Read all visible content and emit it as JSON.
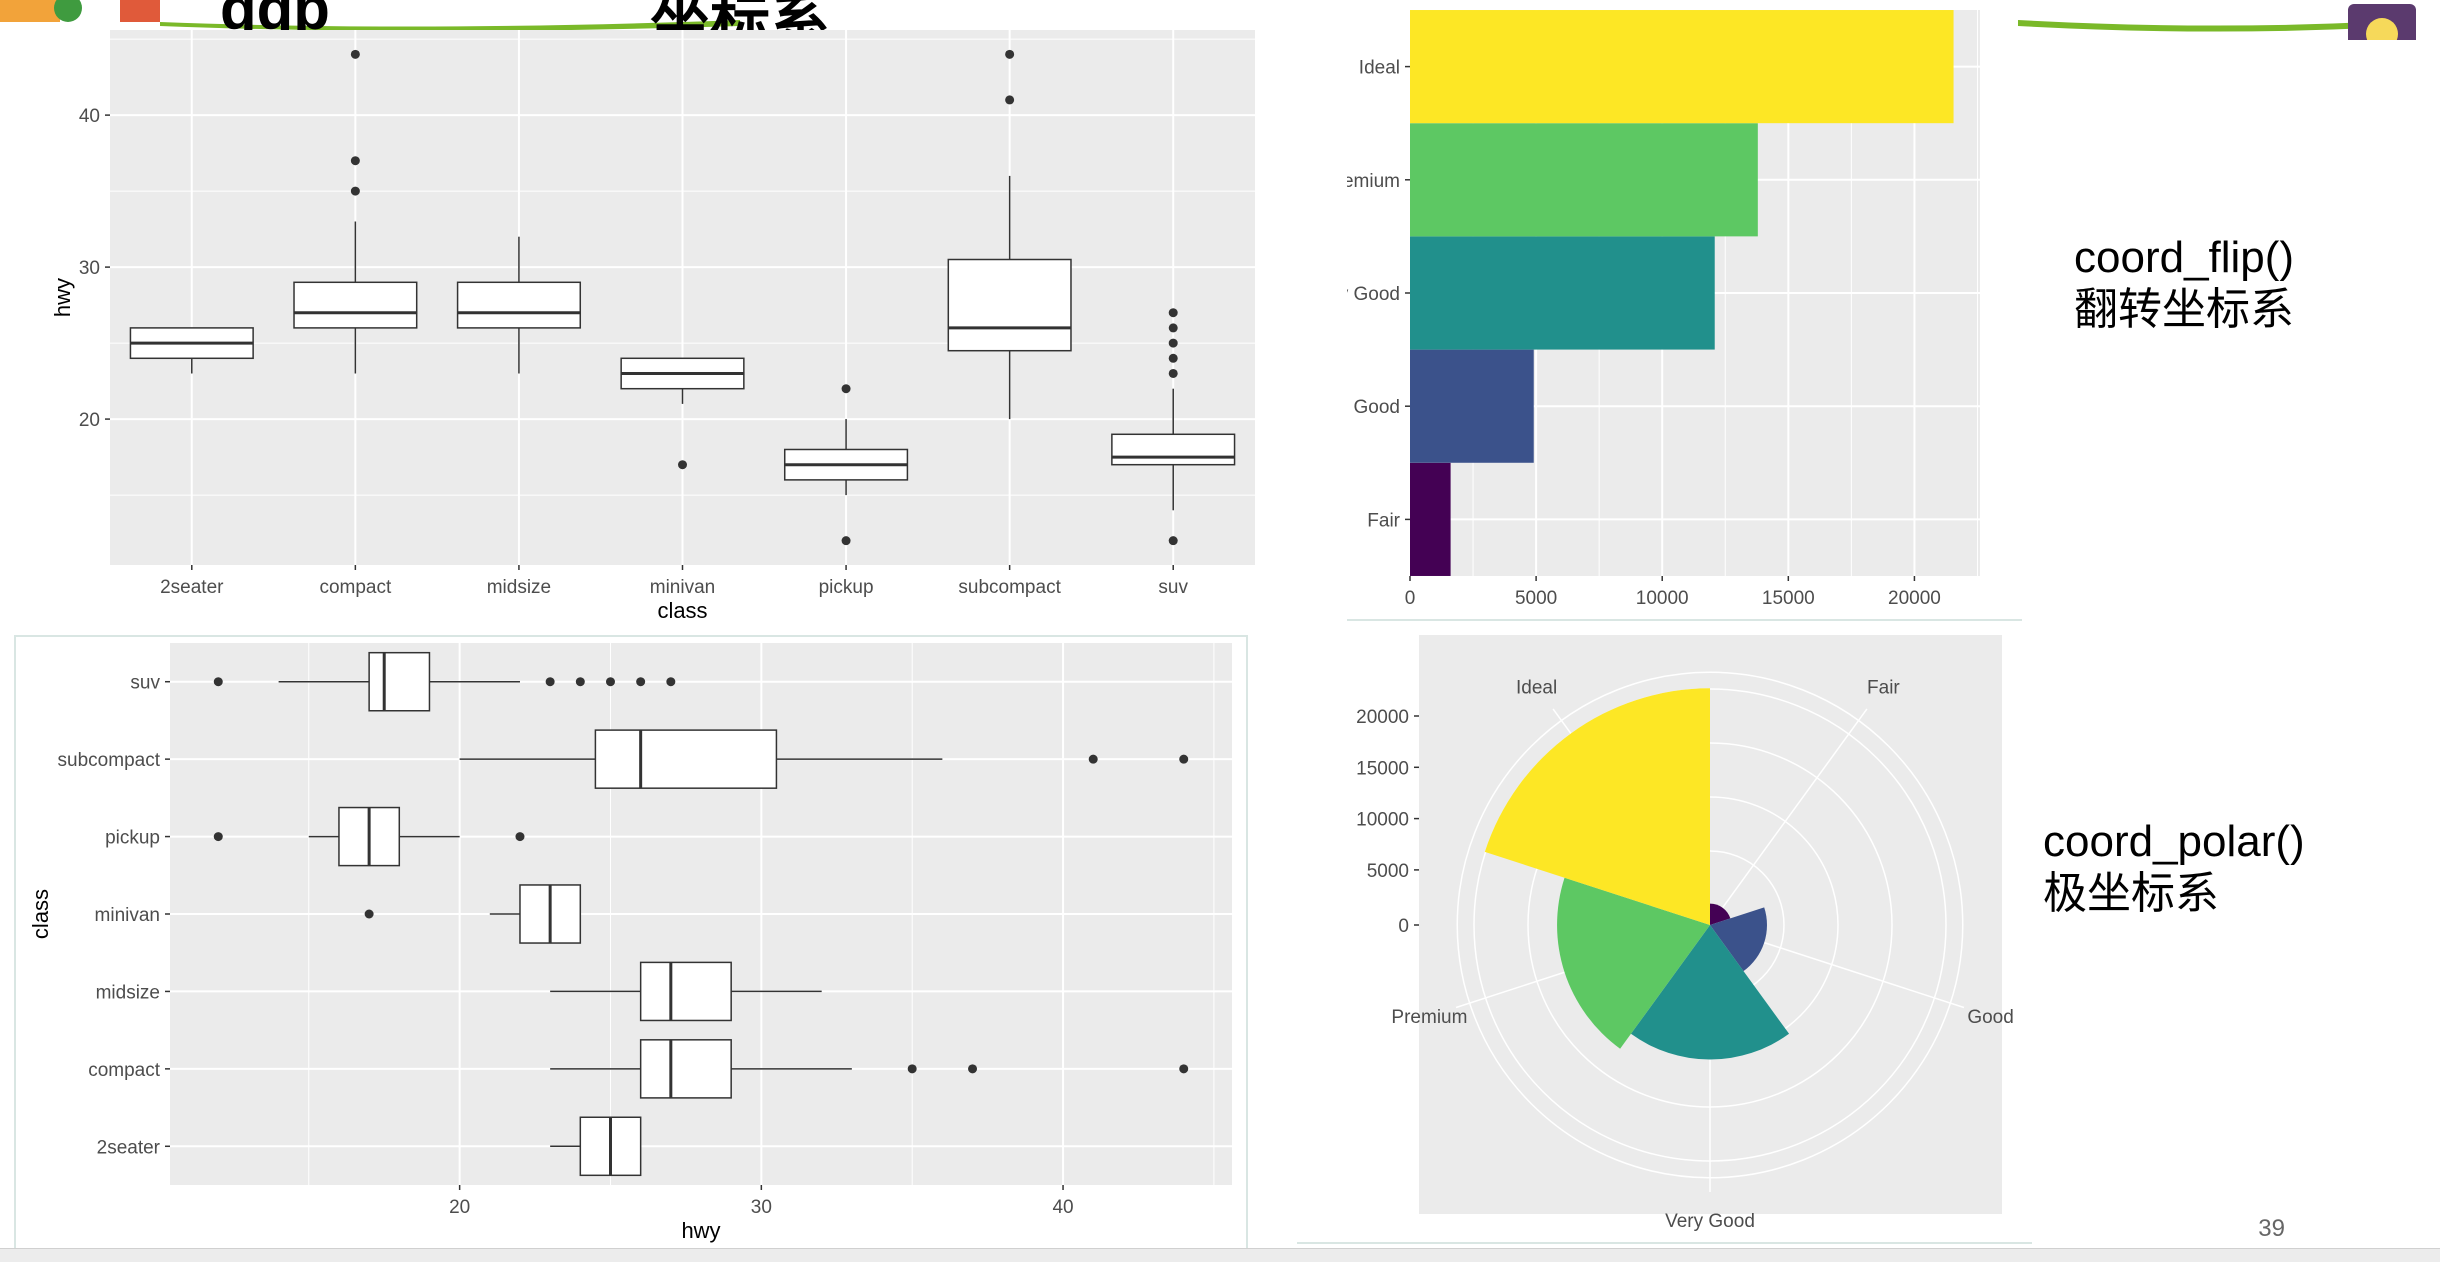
{
  "slide": {
    "title_fragment_left": "ggp",
    "title_fragment_right": "坐标系",
    "page_number": "39",
    "colors": {
      "accent_green": "#7ab929",
      "logo_purple": "#5b3a6e"
    }
  },
  "annotations": {
    "flip": {
      "line1": "coord_flip()",
      "line2": "翻转坐标系"
    },
    "polar": {
      "line1": "coord_polar()",
      "line2": "极坐标系"
    }
  },
  "chart_data": [
    {
      "id": "boxplot-vertical",
      "type": "boxplot",
      "orientation": "vertical",
      "xlabel": "class",
      "ylabel": "hwy",
      "ylim": [
        10.4,
        45.6
      ],
      "ticks": [
        20,
        30,
        40
      ],
      "categories": [
        "2seater",
        "compact",
        "midsize",
        "minivan",
        "pickup",
        "subcompact",
        "suv"
      ],
      "boxes": [
        {
          "q1": 24,
          "median": 25,
          "q3": 26,
          "lo": 23,
          "hi": 26,
          "outliers": []
        },
        {
          "q1": 26,
          "median": 27,
          "q3": 29,
          "lo": 23,
          "hi": 33,
          "outliers": [
            35,
            37,
            44
          ]
        },
        {
          "q1": 26,
          "median": 27,
          "q3": 29,
          "lo": 23,
          "hi": 32,
          "outliers": []
        },
        {
          "q1": 22,
          "median": 23,
          "q3": 24,
          "lo": 21,
          "hi": 24,
          "outliers": [
            17
          ]
        },
        {
          "q1": 16,
          "median": 17,
          "q3": 18,
          "lo": 15,
          "hi": 20,
          "outliers": [
            12,
            22
          ]
        },
        {
          "q1": 24.5,
          "median": 26,
          "q3": 30.5,
          "lo": 20,
          "hi": 36,
          "outliers": [
            41,
            44
          ]
        },
        {
          "q1": 17,
          "median": 17.5,
          "q3": 19,
          "lo": 14,
          "hi": 22,
          "outliers": [
            12,
            23,
            24,
            25,
            26,
            27
          ]
        }
      ]
    },
    {
      "id": "boxplot-flipped",
      "type": "boxplot",
      "orientation": "horizontal",
      "xlabel": "hwy",
      "ylabel": "class",
      "xlim": [
        10.4,
        45.6
      ],
      "ticks": [
        20,
        30,
        40
      ],
      "categories": [
        "2seater",
        "compact",
        "midsize",
        "minivan",
        "pickup",
        "subcompact",
        "suv"
      ],
      "boxes": [
        {
          "q1": 24,
          "median": 25,
          "q3": 26,
          "lo": 23,
          "hi": 26,
          "outliers": []
        },
        {
          "q1": 26,
          "median": 27,
          "q3": 29,
          "lo": 23,
          "hi": 33,
          "outliers": [
            35,
            37,
            44
          ]
        },
        {
          "q1": 26,
          "median": 27,
          "q3": 29,
          "lo": 23,
          "hi": 32,
          "outliers": []
        },
        {
          "q1": 22,
          "median": 23,
          "q3": 24,
          "lo": 21,
          "hi": 24,
          "outliers": [
            17
          ]
        },
        {
          "q1": 16,
          "median": 17,
          "q3": 18,
          "lo": 15,
          "hi": 20,
          "outliers": [
            12,
            22
          ]
        },
        {
          "q1": 24.5,
          "median": 26,
          "q3": 30.5,
          "lo": 20,
          "hi": 36,
          "outliers": [
            41,
            44
          ]
        },
        {
          "q1": 17,
          "median": 17.5,
          "q3": 19,
          "lo": 14,
          "hi": 22,
          "outliers": [
            12,
            23,
            24,
            25,
            26,
            27
          ]
        }
      ]
    },
    {
      "id": "bar-flipped",
      "type": "bar",
      "orientation": "horizontal",
      "categories": [
        "Fair",
        "Good",
        "Very Good",
        "Premium",
        "Ideal"
      ],
      "tick_labels": [
        "Fair",
        "Good",
        "y Good",
        "emium",
        "Ideal"
      ],
      "values": [
        1610,
        4906,
        12082,
        13791,
        21551
      ],
      "colors": [
        "#440154",
        "#3b528b",
        "#21908c",
        "#5dc863",
        "#fde725"
      ],
      "xlim": [
        0,
        22600
      ],
      "ticks": [
        0,
        5000,
        10000,
        15000,
        20000
      ]
    },
    {
      "id": "bar-polar",
      "type": "pie",
      "categories": [
        "Fair",
        "Good",
        "Very Good",
        "Premium",
        "Ideal"
      ],
      "values": [
        1610,
        4906,
        12082,
        13791,
        21551
      ],
      "colors": [
        "#440154",
        "#3b528b",
        "#21908c",
        "#5dc863",
        "#fde725"
      ],
      "rlim": [
        0,
        21551
      ],
      "r_ticks": [
        0,
        5000,
        10000,
        15000,
        20000
      ]
    }
  ]
}
